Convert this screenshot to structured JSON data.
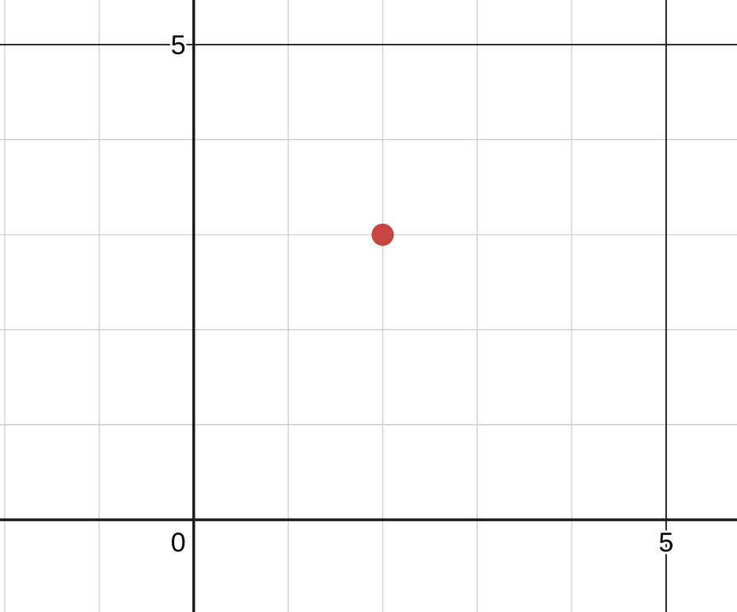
{
  "chart_data": {
    "type": "scatter",
    "title": "",
    "xlabel": "",
    "ylabel": "",
    "xlim": [
      -2.05,
      5.75
    ],
    "ylim": [
      -0.97,
      5.47
    ],
    "minor_step": 1,
    "major_step": 5,
    "grid": true,
    "x_tick_labels": [
      {
        "value": 0,
        "label": "0"
      },
      {
        "value": 5,
        "label": "5"
      }
    ],
    "y_tick_labels": [
      {
        "value": 5,
        "label": "5"
      }
    ],
    "series": [
      {
        "color": "#c74440",
        "points": [
          {
            "x": 2,
            "y": 3
          }
        ]
      }
    ]
  }
}
